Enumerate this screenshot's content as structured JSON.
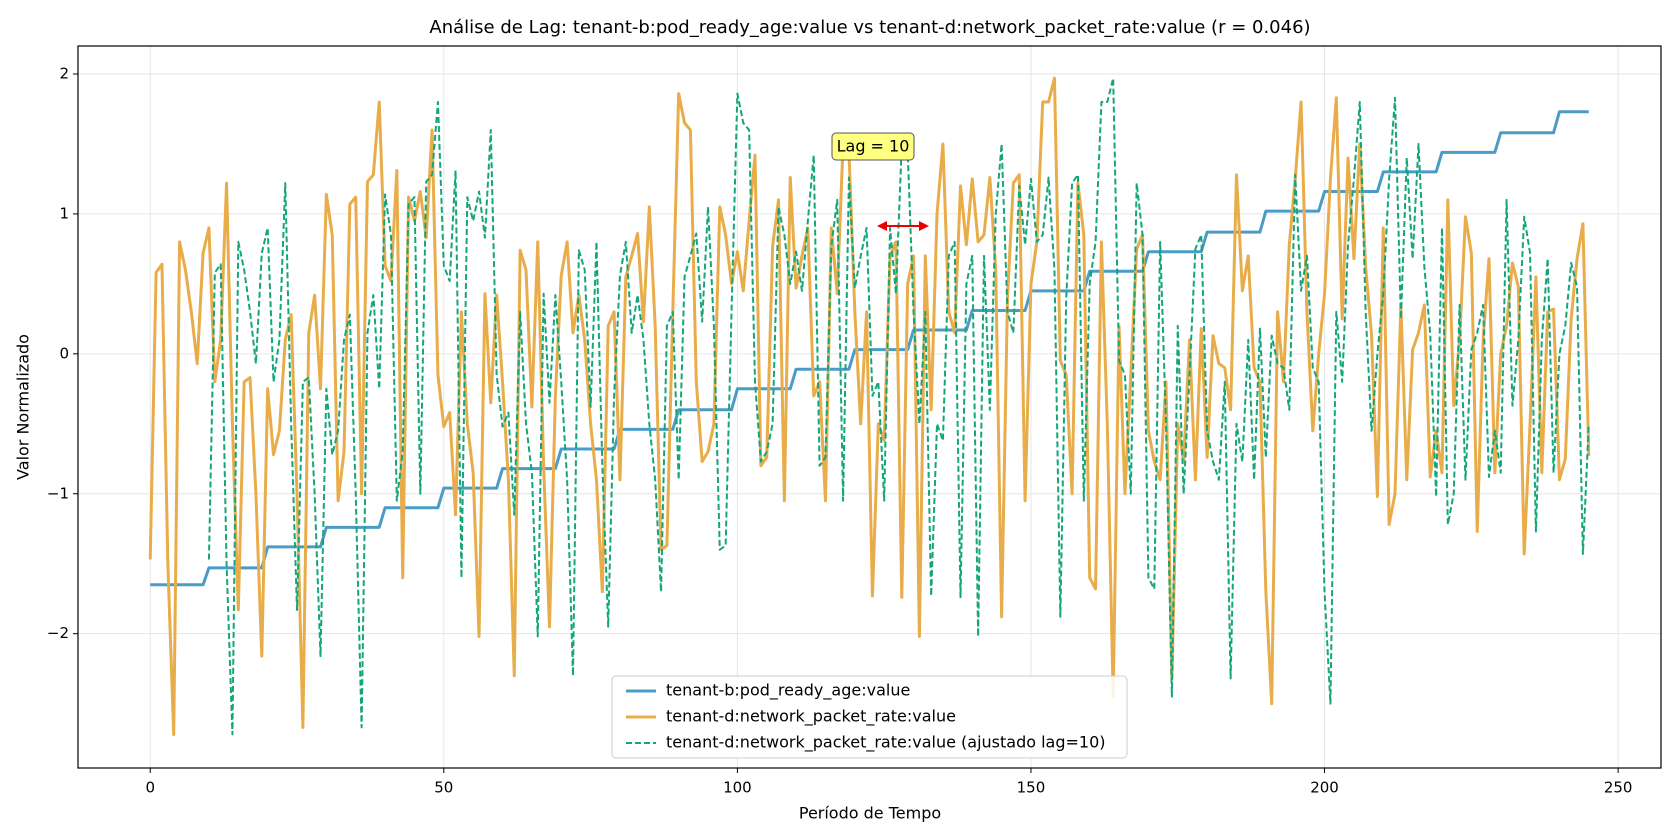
{
  "chart_data": {
    "type": "line",
    "title": "Análise de Lag: tenant-b:pod_ready_age:value vs tenant-d:network_packet_rate:value (r = 0.046)",
    "x_label": "Período de Tempo",
    "y_label": "Valor Normalizado",
    "annotation": "Lag = 10",
    "xlim": [
      -12.3,
      257.3
    ],
    "ylim": [
      -2.96,
      2.2
    ],
    "xticks": [
      0,
      50,
      100,
      150,
      200,
      250
    ],
    "yticks": [
      {
        "value": -2,
        "label": "−2"
      },
      {
        "value": -1,
        "label": "−1"
      },
      0,
      1,
      2
    ],
    "grid": true,
    "legend": "lower center",
    "x": [
      0,
      1,
      2,
      3,
      4,
      5,
      6,
      7,
      8,
      9,
      10,
      11,
      12,
      13,
      14,
      15,
      16,
      17,
      18,
      19,
      20,
      21,
      22,
      23,
      24,
      25,
      26,
      27,
      28,
      29,
      30,
      31,
      32,
      33,
      34,
      35,
      36,
      37,
      38,
      39,
      40,
      41,
      42,
      43,
      44,
      45,
      46,
      47,
      48,
      49,
      50,
      51,
      52,
      53,
      54,
      55,
      56,
      57,
      58,
      59,
      60,
      61,
      62,
      63,
      64,
      65,
      66,
      67,
      68,
      69,
      70,
      71,
      72,
      73,
      74,
      75,
      76,
      77,
      78,
      79,
      80,
      81,
      82,
      83,
      84,
      85,
      86,
      87,
      88,
      89,
      90,
      91,
      92,
      93,
      94,
      95,
      96,
      97,
      98,
      99,
      100,
      101,
      102,
      103,
      104,
      105,
      106,
      107,
      108,
      109,
      110,
      111,
      112,
      113,
      114,
      115,
      116,
      117,
      118,
      119,
      120,
      121,
      122,
      123,
      124,
      125,
      126,
      127,
      128,
      129,
      130,
      131,
      132,
      133,
      134,
      135,
      136,
      137,
      138,
      139,
      140,
      141,
      142,
      143,
      144,
      145,
      146,
      147,
      148,
      149,
      150,
      151,
      152,
      153,
      154,
      155,
      156,
      157,
      158,
      159,
      160,
      161,
      162,
      163,
      164,
      165,
      166,
      167,
      168,
      169,
      170,
      171,
      172,
      173,
      174,
      175,
      176,
      177,
      178,
      179,
      180,
      181,
      182,
      183,
      184,
      185,
      186,
      187,
      188,
      189,
      190,
      191,
      192,
      193,
      194,
      195,
      196,
      197,
      198,
      199,
      200,
      201,
      202,
      203,
      204,
      205,
      206,
      207,
      208,
      209,
      210,
      211,
      212,
      213,
      214,
      215,
      216,
      217,
      218,
      219,
      220,
      221,
      222,
      223,
      224,
      225,
      226,
      227,
      228,
      229,
      230,
      231,
      232,
      233,
      234,
      235,
      236,
      237,
      238,
      239,
      240,
      241,
      242,
      243,
      244,
      245
    ],
    "series": [
      {
        "name": "tenant-b:pod_ready_age:value",
        "color": "#4a9cc7",
        "linestyle": "solid",
        "values": [
          -1.65,
          -1.65,
          -1.65,
          -1.65,
          -1.65,
          -1.65,
          -1.65,
          -1.65,
          -1.65,
          -1.65,
          -1.53,
          -1.53,
          -1.53,
          -1.53,
          -1.53,
          -1.53,
          -1.53,
          -1.53,
          -1.53,
          -1.53,
          -1.38,
          -1.38,
          -1.38,
          -1.38,
          -1.38,
          -1.38,
          -1.38,
          -1.38,
          -1.38,
          -1.38,
          -1.24,
          -1.24,
          -1.24,
          -1.24,
          -1.24,
          -1.24,
          -1.24,
          -1.24,
          -1.24,
          -1.24,
          -1.1,
          -1.1,
          -1.1,
          -1.1,
          -1.1,
          -1.1,
          -1.1,
          -1.1,
          -1.1,
          -1.1,
          -0.96,
          -0.96,
          -0.96,
          -0.96,
          -0.96,
          -0.96,
          -0.96,
          -0.96,
          -0.96,
          -0.96,
          -0.82,
          -0.82,
          -0.82,
          -0.82,
          -0.82,
          -0.82,
          -0.82,
          -0.82,
          -0.82,
          -0.82,
          -0.68,
          -0.68,
          -0.68,
          -0.68,
          -0.68,
          -0.68,
          -0.68,
          -0.68,
          -0.68,
          -0.68,
          -0.54,
          -0.54,
          -0.54,
          -0.54,
          -0.54,
          -0.54,
          -0.54,
          -0.54,
          -0.54,
          -0.54,
          -0.4,
          -0.4,
          -0.4,
          -0.4,
          -0.4,
          -0.4,
          -0.4,
          -0.4,
          -0.4,
          -0.4,
          -0.25,
          -0.25,
          -0.25,
          -0.25,
          -0.25,
          -0.25,
          -0.25,
          -0.25,
          -0.25,
          -0.25,
          -0.11,
          -0.11,
          -0.11,
          -0.11,
          -0.11,
          -0.11,
          -0.11,
          -0.11,
          -0.11,
          -0.11,
          0.03,
          0.03,
          0.03,
          0.03,
          0.03,
          0.03,
          0.03,
          0.03,
          0.03,
          0.03,
          0.17,
          0.17,
          0.17,
          0.17,
          0.17,
          0.17,
          0.17,
          0.17,
          0.17,
          0.17,
          0.31,
          0.31,
          0.31,
          0.31,
          0.31,
          0.31,
          0.31,
          0.31,
          0.31,
          0.31,
          0.45,
          0.45,
          0.45,
          0.45,
          0.45,
          0.45,
          0.45,
          0.45,
          0.45,
          0.45,
          0.59,
          0.59,
          0.59,
          0.59,
          0.59,
          0.59,
          0.59,
          0.59,
          0.59,
          0.59,
          0.73,
          0.73,
          0.73,
          0.73,
          0.73,
          0.73,
          0.73,
          0.73,
          0.73,
          0.73,
          0.87,
          0.87,
          0.87,
          0.87,
          0.87,
          0.87,
          0.87,
          0.87,
          0.87,
          0.87,
          1.02,
          1.02,
          1.02,
          1.02,
          1.02,
          1.02,
          1.02,
          1.02,
          1.02,
          1.02,
          1.16,
          1.16,
          1.16,
          1.16,
          1.16,
          1.16,
          1.16,
          1.16,
          1.16,
          1.16,
          1.3,
          1.3,
          1.3,
          1.3,
          1.3,
          1.3,
          1.3,
          1.3,
          1.3,
          1.3,
          1.44,
          1.44,
          1.44,
          1.44,
          1.44,
          1.44,
          1.44,
          1.44,
          1.44,
          1.44,
          1.58,
          1.58,
          1.58,
          1.58,
          1.58,
          1.58,
          1.58,
          1.58,
          1.58,
          1.58,
          1.73,
          1.73,
          1.73,
          1.73,
          1.73,
          1.73
        ]
      },
      {
        "name": "tenant-d:network_packet_rate:value",
        "color": "#e8ad4a",
        "linestyle": "solid",
        "values": [
          -1.47,
          0.58,
          0.64,
          -1.5,
          -2.72,
          0.8,
          0.6,
          0.3,
          -0.07,
          0.72,
          0.9,
          -0.2,
          0.1,
          1.22,
          -0.5,
          -1.83,
          -0.2,
          -0.17,
          -1.0,
          -2.16,
          -0.25,
          -0.72,
          -0.55,
          0.1,
          0.28,
          -1.0,
          -2.67,
          0.15,
          0.42,
          -0.25,
          1.14,
          0.85,
          -1.05,
          -0.7,
          1.07,
          1.12,
          -1.0,
          1.23,
          1.28,
          1.8,
          0.63,
          0.52,
          1.31,
          -1.6,
          1.12,
          0.95,
          1.16,
          0.83,
          1.6,
          -0.15,
          -0.52,
          -0.42,
          -1.15,
          0.3,
          -0.5,
          -0.85,
          -2.02,
          0.43,
          -0.35,
          0.42,
          -0.2,
          -0.9,
          -2.3,
          0.74,
          0.6,
          -0.38,
          0.8,
          -0.8,
          -1.95,
          -0.3,
          0.56,
          0.8,
          0.15,
          0.42,
          0.1,
          -0.5,
          -0.9,
          -1.7,
          0.2,
          0.3,
          -0.9,
          0.55,
          0.7,
          0.86,
          0.23,
          1.05,
          0.2,
          -1.4,
          -1.37,
          0.3,
          1.86,
          1.65,
          1.6,
          -0.2,
          -0.77,
          -0.7,
          -0.5,
          1.05,
          0.85,
          0.5,
          0.73,
          0.45,
          0.95,
          1.42,
          -0.8,
          -0.74,
          0.77,
          1.1,
          -1.05,
          1.26,
          0.47,
          0.7,
          0.9,
          -0.3,
          -0.2,
          -1.05,
          0.9,
          0.43,
          1.5,
          1.45,
          0.3,
          -0.5,
          0.3,
          -1.73,
          -0.5,
          -0.62,
          0.7,
          0.8,
          -1.74,
          0.5,
          0.7,
          -2.02,
          0.7,
          -0.4,
          1.0,
          1.5,
          0.3,
          0.15,
          1.2,
          0.78,
          1.25,
          0.8,
          0.85,
          1.26,
          0.6,
          -1.88,
          0.4,
          1.22,
          1.28,
          -1.05,
          0.5,
          0.8,
          1.8,
          1.8,
          1.97,
          -0.05,
          -0.15,
          -1.0,
          1.22,
          0.85,
          -1.6,
          -1.68,
          0.8,
          -0.5,
          -2.45,
          0.2,
          -1.0,
          -0.15,
          0.75,
          0.85,
          -0.55,
          -0.77,
          -0.9,
          -0.2,
          -2.32,
          -0.5,
          -0.77,
          0.1,
          -0.9,
          0.18,
          -0.74,
          0.13,
          -0.07,
          -0.1,
          -0.4,
          1.28,
          0.45,
          0.7,
          -0.1,
          -0.2,
          -1.7,
          -2.5,
          0.3,
          -0.2,
          0.78,
          1.25,
          1.8,
          0.3,
          -0.55,
          0.0,
          0.43,
          1.25,
          1.83,
          0.25,
          1.4,
          0.68,
          1.5,
          0.62,
          0.14,
          -1.02,
          0.9,
          -1.22,
          -1.0,
          0.35,
          -0.9,
          0.03,
          0.15,
          0.35,
          -0.88,
          -0.55,
          -0.85,
          1.1,
          -0.37,
          0.1,
          0.98,
          0.72,
          -1.27,
          0.1,
          0.68,
          -0.85,
          0.0,
          0.2,
          0.65,
          0.48,
          -1.43,
          -0.5,
          0.55,
          -0.85,
          0.3,
          0.32,
          -0.9,
          -0.75,
          0.25,
          0.68,
          0.93,
          -0.73
        ]
      },
      {
        "name": "tenant-d:network_packet_rate:value (ajustado lag=10)",
        "color": "#12a67a",
        "linestyle": "dashed",
        "values": [
          null,
          null,
          null,
          null,
          null,
          null,
          null,
          null,
          null,
          null,
          -1.47,
          0.58,
          0.64,
          -1.5,
          -2.72,
          0.8,
          0.6,
          0.3,
          -0.07,
          0.72,
          0.9,
          -0.2,
          0.1,
          1.22,
          -0.5,
          -1.83,
          -0.2,
          -0.17,
          -1.0,
          -2.16,
          -0.25,
          -0.72,
          -0.55,
          0.1,
          0.28,
          -1.0,
          -2.67,
          0.15,
          0.42,
          -0.25,
          1.14,
          0.85,
          -1.05,
          -0.7,
          1.07,
          1.12,
          -1.0,
          1.23,
          1.28,
          1.8,
          0.63,
          0.52,
          1.31,
          -1.6,
          1.12,
          0.95,
          1.16,
          0.83,
          1.6,
          -0.15,
          -0.52,
          -0.42,
          -1.15,
          0.3,
          -0.5,
          -0.85,
          -2.02,
          0.43,
          -0.35,
          0.42,
          -0.2,
          -0.9,
          -2.3,
          0.74,
          0.6,
          -0.38,
          0.8,
          -0.8,
          -1.95,
          -0.3,
          0.56,
          0.8,
          0.15,
          0.42,
          0.1,
          -0.5,
          -0.9,
          -1.7,
          0.2,
          0.3,
          -0.9,
          0.55,
          0.7,
          0.86,
          0.23,
          1.05,
          0.2,
          -1.4,
          -1.37,
          0.3,
          1.86,
          1.65,
          1.6,
          -0.2,
          -0.77,
          -0.7,
          -0.5,
          1.05,
          0.85,
          0.5,
          0.73,
          0.45,
          0.95,
          1.42,
          -0.8,
          -0.74,
          0.77,
          1.1,
          -1.05,
          1.26,
          0.47,
          0.7,
          0.9,
          -0.3,
          -0.2,
          -1.05,
          0.9,
          0.43,
          1.5,
          1.45,
          0.3,
          -0.5,
          0.3,
          -1.73,
          -0.5,
          -0.62,
          0.7,
          0.8,
          -1.74,
          0.5,
          0.7,
          -2.02,
          0.7,
          -0.4,
          1.0,
          1.5,
          0.3,
          0.15,
          1.2,
          0.78,
          1.25,
          0.8,
          0.85,
          1.26,
          0.6,
          -1.88,
          0.4,
          1.22,
          1.28,
          -1.05,
          0.5,
          0.8,
          1.8,
          1.8,
          1.97,
          -0.05,
          -0.15,
          -1.0,
          1.22,
          0.85,
          -1.6,
          -1.68,
          0.8,
          -0.5,
          -2.45,
          0.2,
          -1.0,
          -0.15,
          0.75,
          0.85,
          -0.55,
          -0.77,
          -0.9,
          -0.2,
          -2.32,
          -0.5,
          -0.77,
          0.1,
          -0.9,
          0.18,
          -0.74,
          0.13,
          -0.07,
          -0.1,
          -0.4,
          1.28,
          0.45,
          0.7,
          -0.1,
          -0.2,
          -1.7,
          -2.5,
          0.3,
          -0.2,
          0.78,
          1.25,
          1.8,
          0.3,
          -0.55,
          0.0,
          0.43,
          1.25,
          1.83,
          0.25,
          1.4,
          0.68,
          1.5,
          0.62,
          0.14,
          -1.02,
          0.9,
          -1.22,
          -1.0,
          0.35,
          -0.9,
          0.03,
          0.15,
          0.35,
          -0.88,
          -0.55,
          -0.85,
          1.1,
          -0.37,
          0.1,
          0.98,
          0.72,
          -1.27,
          0.1,
          0.68,
          -0.85,
          0.0,
          0.2,
          0.65,
          0.48,
          -1.43,
          -0.5
        ]
      }
    ]
  }
}
